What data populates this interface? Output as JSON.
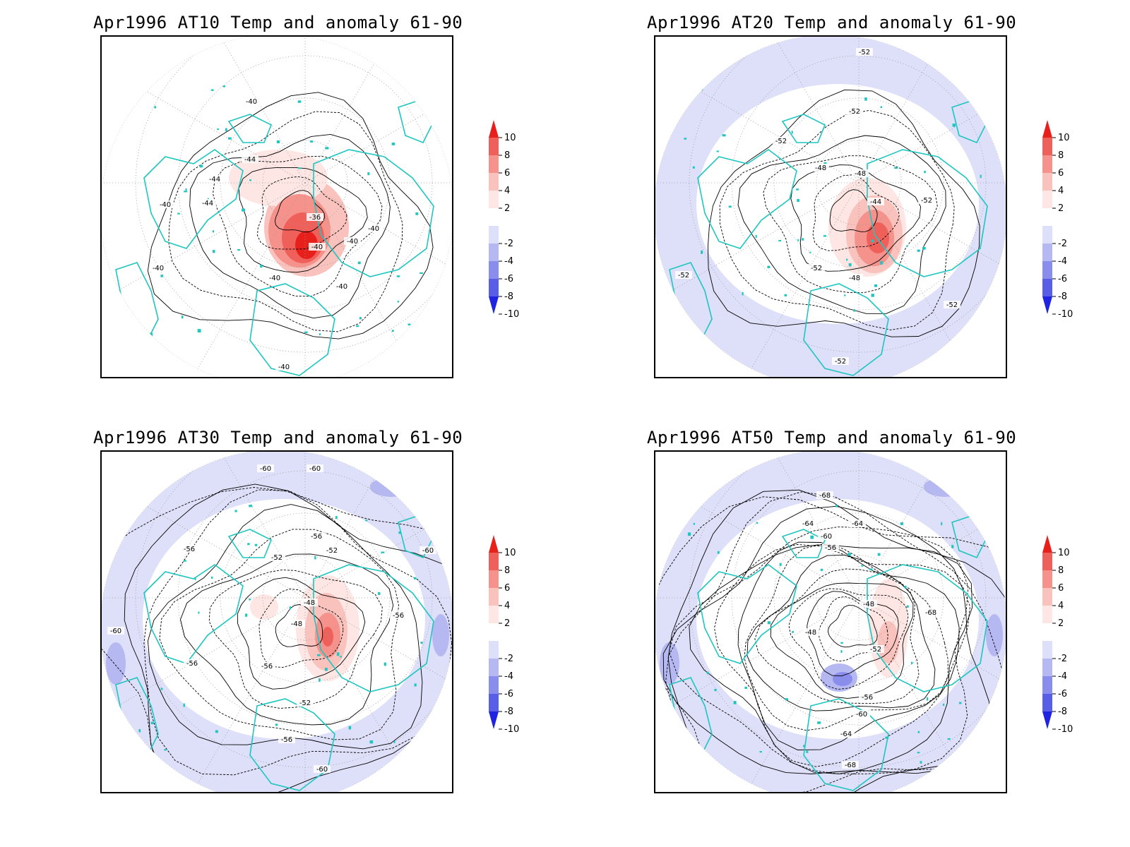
{
  "panels": [
    {
      "id": "at10",
      "title": "Apr1996 AT10 Temp and anomaly 61-90",
      "contour_labels": [
        "-40",
        "-44",
        "-44",
        "-44",
        "-40",
        "-40",
        "-36",
        "-40",
        "-40",
        "-40",
        "-40",
        "-40",
        "-40"
      ],
      "anomaly_max": 10
    },
    {
      "id": "at20",
      "title": "Apr1996 AT20 Temp and anomaly 61-90",
      "contour_labels": [
        "-52",
        "-52",
        "-52",
        "-48",
        "-48",
        "-44",
        "-52",
        "-52",
        "-48",
        "-52",
        "-52",
        "-52"
      ],
      "anomaly_max": 10
    },
    {
      "id": "at30",
      "title": "Apr1996 AT30 Temp and anomaly 61-90",
      "contour_labels": [
        "-60",
        "-60",
        "-56",
        "-56",
        "-52",
        "-52",
        "-48",
        "-48",
        "-56",
        "-60",
        "-56",
        "-56",
        "-52",
        "-56",
        "-60",
        "-60"
      ],
      "anomaly_max": 8
    },
    {
      "id": "at50",
      "title": "Apr1996 AT50 Temp and anomaly 61-90",
      "contour_labels": [
        "-68",
        "-64",
        "-64",
        "-60",
        "-56",
        "-48",
        "-48",
        "-52",
        "-56",
        "-60",
        "-64",
        "-68",
        "-68"
      ],
      "anomaly_max": 4
    }
  ],
  "colorbar": {
    "ticks": [
      "10",
      "8",
      "6",
      "4",
      "2",
      "-2",
      "-4",
      "-6",
      "-8",
      "-10"
    ],
    "colors": [
      "#e8201c",
      "#f0605a",
      "#f5928c",
      "#f9c2bd",
      "#fde6e3",
      "#ffffff",
      "#dedff8",
      "#b6b8f2",
      "#8a8dec",
      "#5a5ee6",
      "#2024e0"
    ],
    "colors_note": "top-to-bottom: >10 arrow, 8-10, 6-8, 4-6, 2-4, -2..2 white, -4..-2, -6..-4, -8..-6, -10..-8, <-10 arrow"
  },
  "coastline_color": "#1fc6c0",
  "contour_color": "#000000"
}
